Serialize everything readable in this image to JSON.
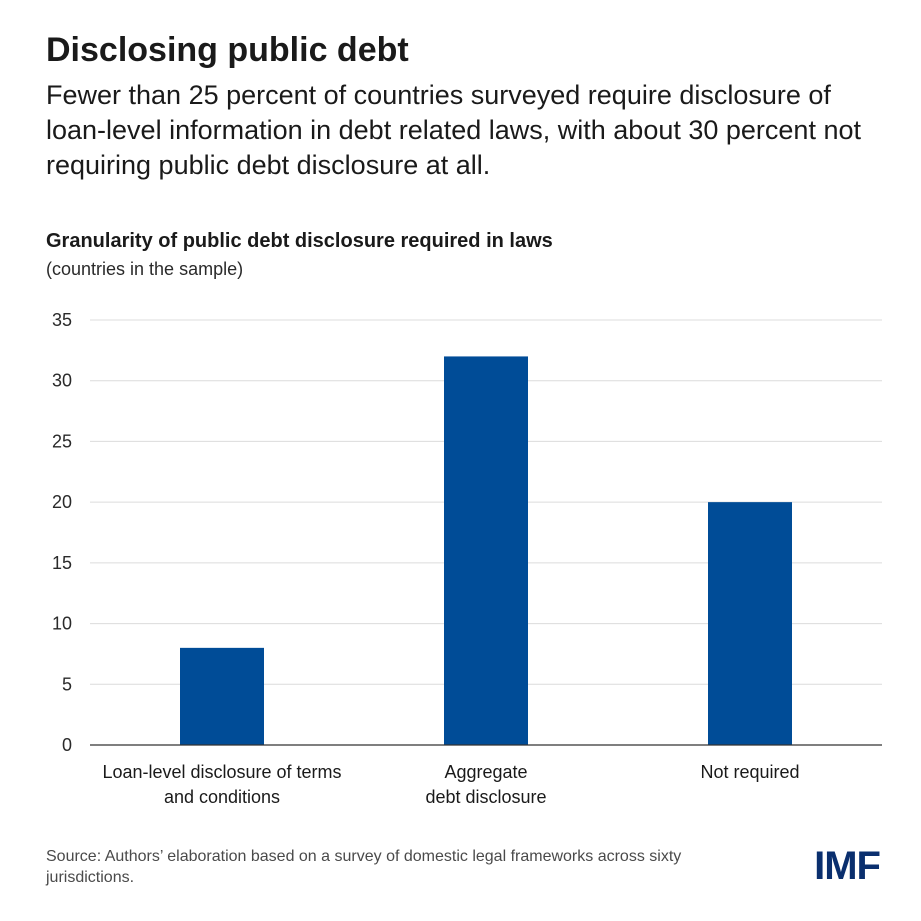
{
  "headline": "Disclosing public debt",
  "subhead": "Fewer than 25 percent of countries surveyed require disclosure of loan-level information in debt related laws, with about 30 percent not requiring public debt disclosure at all.",
  "chart_data": {
    "type": "bar",
    "title": "Granularity of public debt disclosure required in laws",
    "subtitle": "(countries in the sample)",
    "categories": [
      [
        "Loan-level disclosure of terms",
        "and conditions"
      ],
      [
        "Aggregate",
        "debt disclosure"
      ],
      [
        "Not required"
      ]
    ],
    "values": [
      8,
      32,
      20
    ],
    "xlabel": "",
    "ylabel": "",
    "ylim": [
      0,
      35
    ],
    "yticks": [
      "0",
      "5",
      "10",
      "15",
      "20",
      "25",
      "30",
      "35"
    ],
    "grid": true
  },
  "source": "Source: Authors’ elaboration based on a survey of domestic legal frameworks across sixty jurisdictions.",
  "logo": "IMF",
  "colors": {
    "bar": "#004C97",
    "logo": "#0A2F6E",
    "grid": "#dcdcdc",
    "axis": "#333333"
  }
}
